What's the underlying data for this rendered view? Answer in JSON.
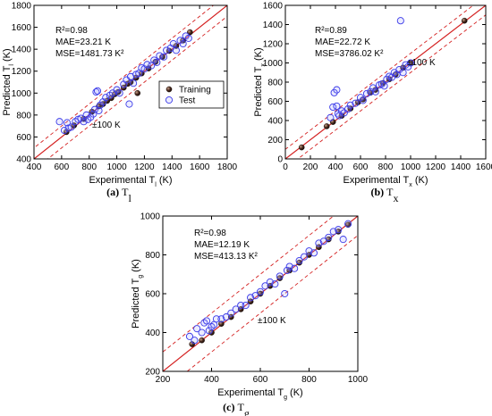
{
  "chart_data": [
    {
      "id": "a",
      "type": "scatter",
      "caption_letter": "(a)",
      "caption_symbol": "T",
      "caption_sub": "l",
      "xlabel_main": "Experimental T",
      "xlabel_sub": "l",
      "xlabel_unit": " (K)",
      "ylabel_main": "Predicted T",
      "ylabel_sub": "l",
      "ylabel_unit": " (K)",
      "xlim": [
        400,
        1800
      ],
      "ylim": [
        400,
        1800
      ],
      "xticks": [
        400,
        600,
        800,
        1000,
        1200,
        1400,
        1600,
        1800
      ],
      "yticks": [
        400,
        600,
        800,
        1000,
        1200,
        1400,
        1600,
        1800
      ],
      "stats": {
        "r2": "R²=0.98",
        "mae": "MAE=23.21 K",
        "mse": "MSE=1481.73 K²"
      },
      "band_label": "±100 K",
      "legend": {
        "position": "center-right",
        "items": [
          "Training",
          "Test"
        ]
      },
      "series": [
        {
          "name": "Training",
          "points": [
            [
              635,
              645
            ],
            [
              690,
              705
            ],
            [
              760,
              765
            ],
            [
              820,
              830
            ],
            [
              870,
              880
            ],
            [
              900,
              900
            ],
            [
              930,
              930
            ],
            [
              960,
              955
            ],
            [
              985,
              990
            ],
            [
              1010,
              1010
            ],
            [
              1050,
              1050
            ],
            [
              1080,
              1085
            ],
            [
              1100,
              1100
            ],
            [
              1140,
              1140
            ],
            [
              1150,
              1000
            ],
            [
              1180,
              1180
            ],
            [
              1230,
              1225
            ],
            [
              1280,
              1285
            ],
            [
              1330,
              1330
            ],
            [
              1380,
              1385
            ],
            [
              1430,
              1430
            ],
            [
              1480,
              1480
            ],
            [
              1530,
              1555
            ]
          ]
        },
        {
          "name": "Test",
          "points": [
            [
              585,
              740
            ],
            [
              620,
              660
            ],
            [
              640,
              730
            ],
            [
              650,
              680
            ],
            [
              670,
              690
            ],
            [
              700,
              740
            ],
            [
              720,
              760
            ],
            [
              740,
              770
            ],
            [
              760,
              740
            ],
            [
              780,
              800
            ],
            [
              790,
              760
            ],
            [
              810,
              780
            ],
            [
              830,
              810
            ],
            [
              840,
              850
            ],
            [
              850,
              1010
            ],
            [
              860,
              1020
            ],
            [
              870,
              840
            ],
            [
              880,
              890
            ],
            [
              900,
              920
            ],
            [
              920,
              960
            ],
            [
              950,
              980
            ],
            [
              970,
              1000
            ],
            [
              1000,
              1030
            ],
            [
              1020,
              1000
            ],
            [
              1050,
              1080
            ],
            [
              1070,
              1120
            ],
            [
              1090,
              900
            ],
            [
              1100,
              1150
            ],
            [
              1120,
              1090
            ],
            [
              1140,
              1170
            ],
            [
              1160,
              1180
            ],
            [
              1180,
              1230
            ],
            [
              1200,
              1220
            ],
            [
              1220,
              1260
            ],
            [
              1250,
              1250
            ],
            [
              1270,
              1300
            ],
            [
              1290,
              1280
            ],
            [
              1310,
              1340
            ],
            [
              1340,
              1330
            ],
            [
              1360,
              1390
            ],
            [
              1390,
              1410
            ],
            [
              1410,
              1450
            ],
            [
              1430,
              1390
            ],
            [
              1460,
              1480
            ],
            [
              1480,
              1450
            ],
            [
              1500,
              1520
            ],
            [
              1520,
              1500
            ]
          ]
        }
      ]
    },
    {
      "id": "b",
      "type": "scatter",
      "caption_letter": "(b)",
      "caption_symbol": "T",
      "caption_sub": "x",
      "xlabel_main": "Experimental T",
      "xlabel_sub": "x",
      "xlabel_unit": " (K)",
      "ylabel_main": "Predicted T",
      "ylabel_sub": "x",
      "ylabel_unit": " (K)",
      "xlim": [
        0,
        1600
      ],
      "ylim": [
        0,
        1600
      ],
      "xticks": [
        0,
        200,
        400,
        600,
        800,
        1000,
        1200,
        1400,
        1600
      ],
      "yticks": [
        0,
        200,
        400,
        600,
        800,
        1000,
        1200,
        1400,
        1600
      ],
      "stats": {
        "r2": "R²=0.89",
        "mae": "MAE=22.72 K",
        "mse": "MSE=3786.02 K²"
      },
      "band_label": "±100 K",
      "legend": null,
      "series": [
        {
          "name": "Training",
          "points": [
            [
              130,
              120
            ],
            [
              330,
              340
            ],
            [
              380,
              385
            ],
            [
              450,
              450
            ],
            [
              520,
              525
            ],
            [
              580,
              590
            ],
            [
              620,
              620
            ],
            [
              680,
              690
            ],
            [
              720,
              720
            ],
            [
              780,
              790
            ],
            [
              830,
              830
            ],
            [
              880,
              880
            ],
            [
              940,
              950
            ],
            [
              1000,
              1000
            ],
            [
              1430,
              1440
            ]
          ]
        },
        {
          "name": "Test",
          "points": [
            [
              360,
              430
            ],
            [
              380,
              540
            ],
            [
              390,
              690
            ],
            [
              410,
              720
            ],
            [
              410,
              550
            ],
            [
              420,
              470
            ],
            [
              430,
              450
            ],
            [
              450,
              500
            ],
            [
              470,
              480
            ],
            [
              500,
              520
            ],
            [
              520,
              560
            ],
            [
              560,
              580
            ],
            [
              600,
              640
            ],
            [
              620,
              610
            ],
            [
              650,
              680
            ],
            [
              680,
              700
            ],
            [
              700,
              740
            ],
            [
              720,
              700
            ],
            [
              750,
              770
            ],
            [
              770,
              780
            ],
            [
              790,
              760
            ],
            [
              810,
              830
            ],
            [
              830,
              860
            ],
            [
              850,
              850
            ],
            [
              870,
              900
            ],
            [
              890,
              880
            ],
            [
              910,
              930
            ],
            [
              920,
              1440
            ],
            [
              940,
              900
            ],
            [
              960,
              980
            ],
            [
              980,
              960
            ],
            [
              1000,
              1000
            ]
          ]
        }
      ]
    },
    {
      "id": "c",
      "type": "scatter",
      "caption_letter": "(c)",
      "caption_symbol": "T",
      "caption_sub": "g",
      "xlabel_main": "Experimental T",
      "xlabel_sub": "g",
      "xlabel_unit": " (K)",
      "ylabel_main": "Predicted T",
      "ylabel_sub": "g",
      "ylabel_unit": " (K)",
      "xlim": [
        200,
        1000
      ],
      "ylim": [
        200,
        1000
      ],
      "xticks": [
        200,
        400,
        600,
        800,
        1000
      ],
      "yticks": [
        200,
        400,
        600,
        800,
        1000
      ],
      "stats": {
        "r2": "R²=0.98",
        "mae": "MAE=12.19  K",
        "mse": "MSE=413.13 K²"
      },
      "band_label": "±100 K",
      "legend": null,
      "series": [
        {
          "name": "Training",
          "points": [
            [
              320,
              340
            ],
            [
              360,
              360
            ],
            [
              400,
              400
            ],
            [
              440,
              445
            ],
            [
              480,
              480
            ],
            [
              520,
              520
            ],
            [
              560,
              560
            ],
            [
              600,
              600
            ],
            [
              640,
              640
            ],
            [
              680,
              680
            ],
            [
              720,
              720
            ],
            [
              760,
              760
            ],
            [
              800,
              800
            ],
            [
              840,
              840
            ],
            [
              880,
              880
            ],
            [
              920,
              920
            ],
            [
              960,
              955
            ]
          ]
        },
        {
          "name": "Test",
          "points": [
            [
              310,
              380
            ],
            [
              330,
              360
            ],
            [
              340,
              420
            ],
            [
              360,
              400
            ],
            [
              370,
              450
            ],
            [
              380,
              460
            ],
            [
              390,
              410
            ],
            [
              400,
              430
            ],
            [
              410,
              440
            ],
            [
              420,
              470
            ],
            [
              440,
              470
            ],
            [
              460,
              480
            ],
            [
              480,
              500
            ],
            [
              500,
              520
            ],
            [
              520,
              540
            ],
            [
              540,
              540
            ],
            [
              560,
              580
            ],
            [
              580,
              590
            ],
            [
              600,
              610
            ],
            [
              620,
              640
            ],
            [
              640,
              660
            ],
            [
              660,
              650
            ],
            [
              680,
              690
            ],
            [
              700,
              600
            ],
            [
              710,
              720
            ],
            [
              720,
              740
            ],
            [
              740,
              730
            ],
            [
              760,
              770
            ],
            [
              780,
              790
            ],
            [
              800,
              820
            ],
            [
              820,
              810
            ],
            [
              840,
              860
            ],
            [
              860,
              870
            ],
            [
              880,
              890
            ],
            [
              900,
              920
            ],
            [
              920,
              930
            ],
            [
              940,
              880
            ],
            [
              960,
              960
            ]
          ]
        }
      ]
    }
  ]
}
